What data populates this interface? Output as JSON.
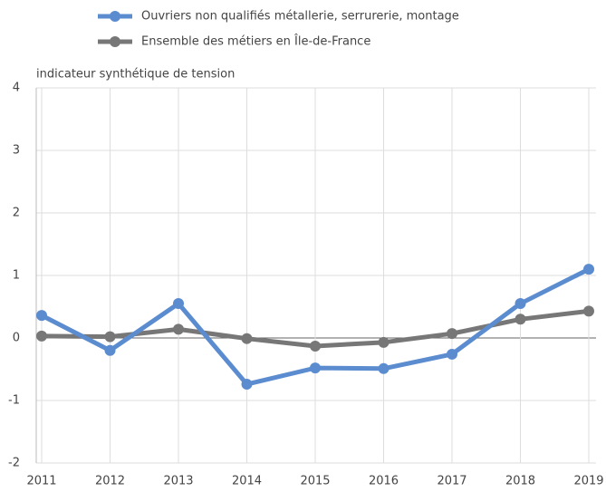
{
  "chart_data": {
    "type": "line",
    "y_label": "indicateur synthétique de tension",
    "categories": [
      "2011",
      "2012",
      "2013",
      "2014",
      "2015",
      "2016",
      "2017",
      "2018",
      "2019"
    ],
    "series": [
      {
        "name": "Ouvriers non qualifiés métallerie, serrurerie, montage",
        "color": "#5b8ccf",
        "values": [
          0.36,
          -0.2,
          0.55,
          -0.74,
          -0.48,
          -0.49,
          -0.26,
          0.55,
          1.1
        ]
      },
      {
        "name": "Ensemble des métiers en Île-de-France",
        "color": "#777777",
        "values": [
          0.03,
          0.02,
          0.14,
          -0.01,
          -0.13,
          -0.07,
          0.07,
          0.3,
          0.43
        ]
      }
    ],
    "ylim": [
      -2,
      4
    ],
    "yticks": [
      -2,
      -1,
      0,
      1,
      2,
      3,
      4
    ],
    "grid": true
  }
}
